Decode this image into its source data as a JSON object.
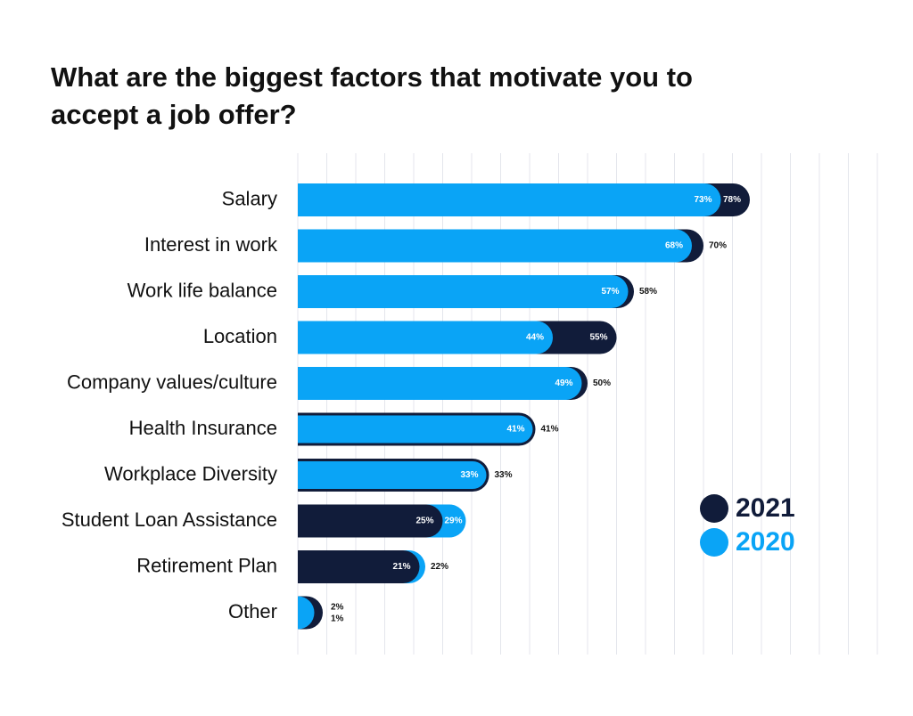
{
  "chart_data": {
    "type": "bar",
    "orientation": "horizontal",
    "title": "What are the biggest factors that motivate you to accept a job offer?",
    "categories": [
      "Salary",
      "Interest in work",
      "Work life balance",
      "Location",
      "Company values/culture",
      "Health Insurance",
      "Workplace Diversity",
      "Student Loan Assistance",
      "Retirement Plan",
      "Other"
    ],
    "series": [
      {
        "name": "2021",
        "color": "#111c3a",
        "values": [
          78,
          70,
          58,
          55,
          50,
          41,
          33,
          25,
          21,
          2
        ],
        "labels": [
          "78%",
          "70%",
          "58%",
          "55%",
          "50%",
          "41%",
          "33%",
          "25%",
          "21%",
          "2%"
        ]
      },
      {
        "name": "2020",
        "color": "#0aa4f6",
        "values": [
          73,
          68,
          57,
          44,
          49,
          41,
          33,
          29,
          22,
          1
        ],
        "labels": [
          "73%",
          "68%",
          "57%",
          "44%",
          "49%",
          "41%",
          "33%",
          "29%",
          "22%",
          "1%"
        ]
      }
    ],
    "xlim": [
      0,
      100
    ],
    "grid": true,
    "legend_position": "right"
  }
}
